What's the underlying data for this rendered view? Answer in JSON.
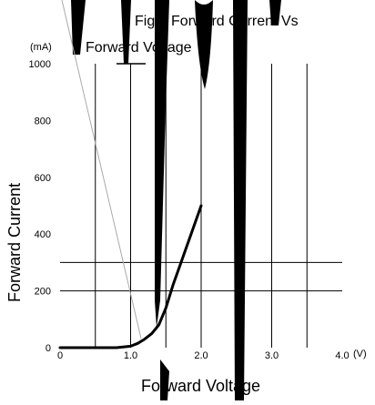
{
  "chart_data": {
    "type": "line",
    "title_line1": "Fig.3 Forward Current Vs",
    "title_line2": "Forward Voltage",
    "xlabel": "Forward Voltage",
    "ylabel": "Forward Current",
    "y_unit": "(mA)",
    "x_unit": "(V)",
    "xlim": [
      0,
      4.0
    ],
    "ylim": [
      0,
      1000
    ],
    "x_ticks": [
      {
        "value": 0,
        "label": "0"
      },
      {
        "value": 1.0,
        "label": "1.0"
      },
      {
        "value": 2.0,
        "label": "2.0"
      },
      {
        "value": 3.0,
        "label": "3.0"
      },
      {
        "value": 4.0,
        "label": "4.0"
      }
    ],
    "y_ticks": [
      {
        "value": 0,
        "label": "0"
      },
      {
        "value": 200,
        "label": "200"
      },
      {
        "value": 400,
        "label": "400"
      },
      {
        "value": 600,
        "label": "600"
      },
      {
        "value": 800,
        "label": "800"
      },
      {
        "value": 1000,
        "label": "1000"
      }
    ],
    "vertical_gridlines_x": [
      0.5,
      1.0,
      1.5,
      2.0,
      2.5,
      3.0,
      3.5
    ],
    "horizontal_gridlines_y": [
      200,
      300
    ],
    "series": [
      {
        "x": [
          0,
          0.5,
          0.8,
          1.0,
          1.1,
          1.2,
          1.3,
          1.4,
          1.5,
          1.6,
          1.7,
          1.8,
          1.9,
          2.0
        ],
        "y": [
          0,
          0,
          0,
          5,
          15,
          30,
          50,
          80,
          140,
          220,
          290,
          360,
          430,
          500
        ]
      }
    ],
    "grid": true,
    "line_color": "#000000"
  }
}
